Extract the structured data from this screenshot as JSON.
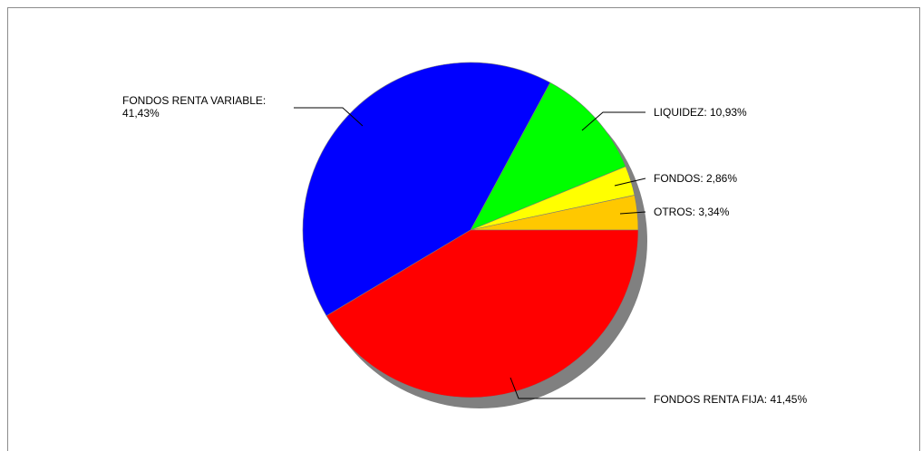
{
  "chart_data": {
    "type": "pie",
    "title": "",
    "slices": [
      {
        "name": "OTROS",
        "value": 3.34,
        "label_lines": [
          "OTROS: 3,34%"
        ],
        "color": "#ffc800"
      },
      {
        "name": "FONDOS",
        "value": 2.86,
        "label_lines": [
          "FONDOS: 2,86%"
        ],
        "color": "#ffff00"
      },
      {
        "name": "LIQUIDEZ",
        "value": 10.93,
        "label_lines": [
          "LIQUIDEZ: 10,93%"
        ],
        "color": "#00ff00"
      },
      {
        "name": "FONDOS RENTA VARIABLE",
        "value": 41.43,
        "label_lines": [
          "FONDOS RENTA VARIABLE:",
          "41,43%"
        ],
        "color": "#0000ff"
      },
      {
        "name": "FONDOS RENTA FIJA",
        "value": 41.45,
        "label_lines": [
          "FONDOS RENTA FIJA: 41,45%"
        ],
        "color": "#ff0000"
      }
    ],
    "start_angle_deg": 0,
    "direction": "counterclockwise",
    "shadow": true,
    "shadow_color": "#808080",
    "legend": "none"
  }
}
